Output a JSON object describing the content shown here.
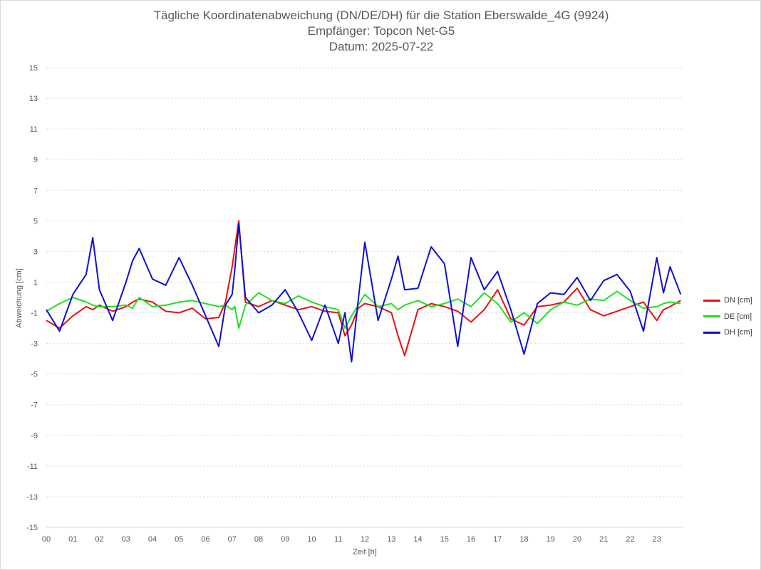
{
  "titles": {
    "line1": "Tägliche Koordinatenabweichung (DN/DE/DH) für die Station Eberswalde_4G (9924)",
    "line2": "Empfänger: Topcon Net-G5",
    "line3": "Datum: 2025-07-22"
  },
  "chart_data": {
    "type": "line",
    "xlabel": "Zeit [h]",
    "ylabel": "Abweichung [cm]",
    "ylim": [
      -15,
      15
    ],
    "xlim": [
      0,
      24
    ],
    "y_ticks": [
      "15",
      "13",
      "11",
      "9",
      "7",
      "5",
      "3",
      "1",
      "-1",
      "-3",
      "-5",
      "-7",
      "-9",
      "-11",
      "-13",
      "-15"
    ],
    "x_ticks": [
      "00",
      "01",
      "02",
      "03",
      "04",
      "05",
      "06",
      "07",
      "08",
      "09",
      "10",
      "11",
      "12",
      "13",
      "14",
      "15",
      "16",
      "17",
      "18",
      "19",
      "20",
      "21",
      "22",
      "23"
    ],
    "grid": "horizontal dotted",
    "legend_position": "right",
    "colors": {
      "DN": "#e81010",
      "DE": "#20e020",
      "DH": "#1010d0"
    },
    "x": [
      0,
      0.5,
      1,
      1.5,
      1.75,
      2,
      2.5,
      3,
      3.25,
      3.5,
      4,
      4.5,
      5,
      5.5,
      6,
      6.5,
      6.75,
      7,
      7.1,
      7.25,
      7.5,
      8,
      8.5,
      9,
      9.5,
      10,
      10.5,
      11,
      11.25,
      11.5,
      11.75,
      12,
      12.5,
      13,
      13.25,
      13.5,
      14,
      14.5,
      15,
      15.5,
      16,
      16.5,
      17,
      17.5,
      18,
      18.5,
      19,
      19.5,
      20,
      20.5,
      21,
      21.5,
      22,
      22.5,
      23,
      23.25,
      23.5,
      23.9
    ],
    "series": [
      {
        "name": "DN [cm]",
        "values": [
          -1.5,
          -2.0,
          -1.2,
          -0.6,
          -0.8,
          -0.5,
          -0.9,
          -0.6,
          -0.3,
          -0.1,
          -0.3,
          -0.9,
          -1.0,
          -0.7,
          -1.4,
          -1.3,
          -0.3,
          2.0,
          3.2,
          5.0,
          -0.3,
          -0.6,
          -0.2,
          -0.5,
          -0.8,
          -0.6,
          -0.9,
          -1.0,
          -2.5,
          -1.8,
          -0.7,
          -0.4,
          -0.6,
          -1.0,
          -2.5,
          -3.8,
          -0.8,
          -0.4,
          -0.6,
          -0.9,
          -1.6,
          -0.8,
          0.5,
          -1.4,
          -1.8,
          -0.6,
          -0.5,
          -0.3,
          0.6,
          -0.8,
          -1.2,
          -0.9,
          -0.6,
          -0.3,
          -1.5,
          -0.8,
          -0.6,
          -0.2
        ]
      },
      {
        "name": "DE [cm]",
        "values": [
          -0.9,
          -0.4,
          0.0,
          -0.3,
          -0.5,
          -0.6,
          -0.6,
          -0.5,
          -0.7,
          0.0,
          -0.6,
          -0.5,
          -0.3,
          -0.2,
          -0.4,
          -0.6,
          -0.5,
          -0.8,
          -0.6,
          -2.0,
          -0.5,
          0.3,
          -0.2,
          -0.4,
          0.1,
          -0.3,
          -0.6,
          -0.8,
          -2.0,
          -1.2,
          -0.5,
          0.2,
          -0.6,
          -0.4,
          -0.8,
          -0.5,
          -0.2,
          -0.6,
          -0.4,
          -0.1,
          -0.6,
          0.3,
          -0.4,
          -1.6,
          -1.0,
          -1.7,
          -0.8,
          -0.3,
          -0.5,
          -0.1,
          -0.2,
          0.4,
          -0.2,
          -0.7,
          -0.6,
          -0.4,
          -0.3,
          -0.4
        ]
      },
      {
        "name": "DH [cm]",
        "values": [
          -0.8,
          -2.2,
          0.2,
          1.5,
          3.9,
          0.5,
          -1.5,
          1.0,
          2.4,
          3.2,
          1.2,
          0.8,
          2.6,
          0.8,
          -1.2,
          -3.2,
          -0.5,
          0.2,
          1.8,
          4.8,
          0.0,
          -1.0,
          -0.5,
          0.5,
          -1.0,
          -2.8,
          -0.5,
          -3.0,
          -1.0,
          -4.2,
          -0.2,
          3.6,
          -1.5,
          1.2,
          2.7,
          0.5,
          0.6,
          3.3,
          2.2,
          -3.2,
          2.6,
          0.5,
          1.7,
          -0.8,
          -3.7,
          -0.4,
          0.3,
          0.2,
          1.3,
          -0.2,
          1.1,
          1.5,
          0.4,
          -2.2,
          2.6,
          0.3,
          2.0,
          0.2
        ]
      }
    ]
  }
}
